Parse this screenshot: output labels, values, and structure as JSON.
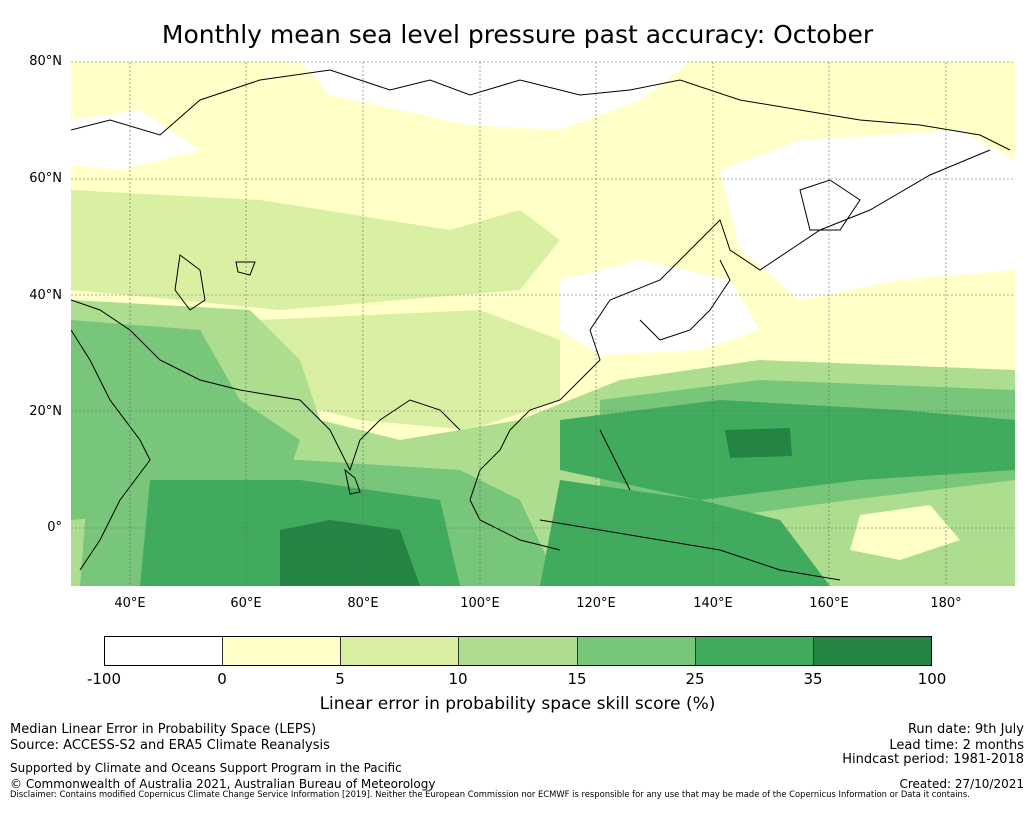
{
  "title": "Monthly mean sea level pressure past accuracy: October",
  "map": {
    "lat_labels": [
      "80°N",
      "60°N",
      "40°N",
      "20°N",
      "0°"
    ],
    "lon_labels": [
      "40°E",
      "60°E",
      "80°E",
      "100°E",
      "120°E",
      "140°E",
      "160°E",
      "180°"
    ],
    "extent": {
      "lon": [
        30,
        192
      ],
      "lat": [
        -10,
        80
      ]
    }
  },
  "colorbar": {
    "ticks": [
      "-100",
      "0",
      "5",
      "10",
      "15",
      "25",
      "35",
      "100"
    ],
    "colors": [
      "#ffffff",
      "#ffffc8",
      "#d9f0a3",
      "#addd8e",
      "#78c679",
      "#41ab5d",
      "#238443"
    ],
    "label": "Linear error in probability space skill score (%)"
  },
  "footer": {
    "left1": "Median Linear Error in Probability Space (LEPS)",
    "left2": "Source: ACCESS-S2 and ERA5 Climate Reanalysis",
    "left3": "Supported by Climate and Oceans Support Program in the Pacific",
    "left4": "© Commonwealth of Australia 2021, Australian Bureau of Meteorology",
    "right1": "Run date: 9th July",
    "right2": "Lead time: 2 months",
    "right3": "Hindcast period: 1981-2018",
    "right4": "Created: 27/10/2021",
    "disclaimer": "Disclaimer: Contains modified Copernicus Climate Change Service Information [2019]. Neither the European Commission nor ECMWF is responsible for any use that may be made of the Copernicus Information or Data it contains."
  }
}
